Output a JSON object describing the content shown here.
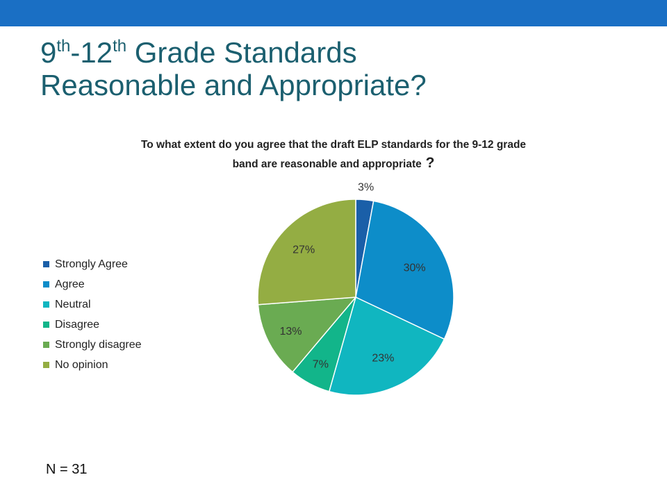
{
  "slide": {
    "title_line1_a": "9",
    "title_line1_sup_a": "th",
    "title_line1_b": "-12",
    "title_line1_sup_b": "th",
    "title_line1_c": " Grade Standards",
    "title_line2": "Reasonable and Appropriate?",
    "note": "N = 31"
  },
  "chart_data": {
    "type": "pie",
    "title": "To what extent do you agree that the draft ELP standards for the 9-12 grade band are reasonable and appropriate",
    "title_line1": "To what extent do you agree that the draft ELP standards for the 9-12 grade",
    "title_line2": "band are reasonable and appropriate",
    "title_mark": "?",
    "categories": [
      "Strongly Agree",
      "Agree",
      "Neutral",
      "Disagree",
      "Strongly disagree",
      "No opinion"
    ],
    "values": [
      3,
      30,
      23,
      7,
      13,
      27
    ],
    "labels": [
      "3%",
      "30%",
      "23%",
      "7%",
      "13%",
      "27%"
    ],
    "colors": [
      "#1a5fa8",
      "#0d8dc9",
      "#10b6c0",
      "#12b58a",
      "#6aab52",
      "#94ad43"
    ],
    "legend_position": "left"
  }
}
